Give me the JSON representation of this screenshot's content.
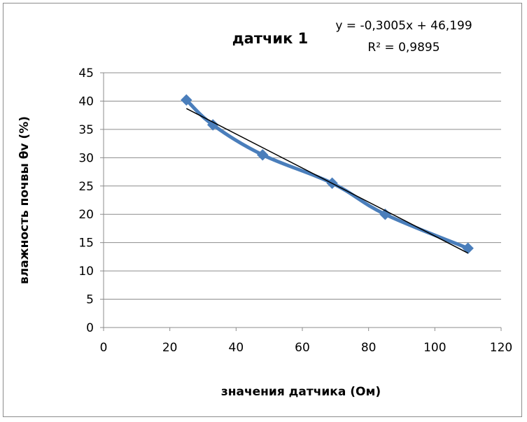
{
  "chart_data": {
    "type": "scatter",
    "title": "датчик 1",
    "xlabel": "значения датчика (Ом)",
    "ylabel": "влажность почвы θv (%)",
    "xlim": [
      0,
      120
    ],
    "ylim": [
      0,
      45
    ],
    "x_ticks": [
      "0",
      "20",
      "40",
      "60",
      "80",
      "100",
      "120"
    ],
    "y_ticks": [
      "0",
      "5",
      "10",
      "15",
      "20",
      "25",
      "30",
      "35",
      "40",
      "45"
    ],
    "grid": "horizontal",
    "legend": "none",
    "series": [
      {
        "color": "#4a7ebb",
        "marker": "diamond",
        "line": "smooth",
        "x": [
          25,
          33,
          48,
          69,
          85,
          110
        ],
        "y": [
          40.2,
          35.8,
          30.5,
          25.5,
          20,
          14
        ]
      }
    ],
    "trendline": {
      "type": "linear",
      "color": "#000000",
      "slope": -0.3005,
      "intercept": 46.199,
      "x_range": [
        25,
        110
      ],
      "equation": "y = -0,3005x + 46,199",
      "r_squared": "R² = 0,9895"
    }
  }
}
